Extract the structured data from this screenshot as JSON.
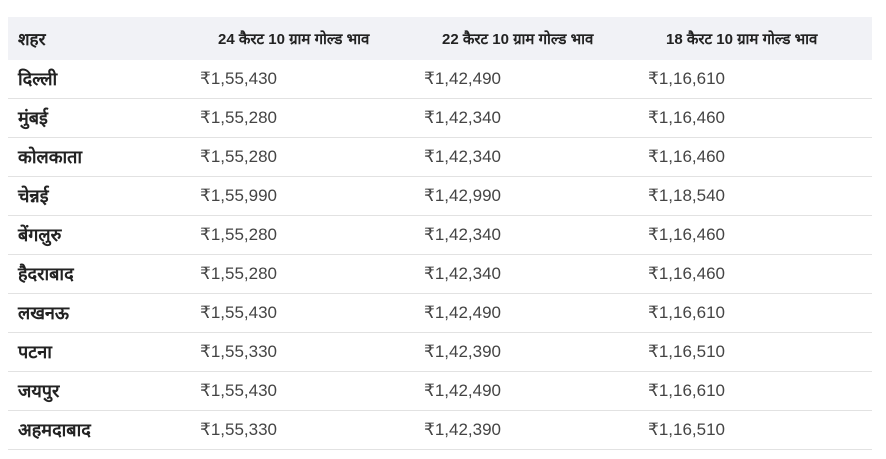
{
  "table": {
    "headers": [
      "शहर",
      "24 कैरट 10 ग्राम गोल्ड भाव",
      "22 कैरट 10 ग्राम गोल्ड भाव",
      "18 कैरट 10 ग्राम गोल्ड भाव"
    ],
    "rows": [
      [
        "दिल्ली",
        "₹1,55,430",
        "₹1,42,490",
        "₹1,16,610"
      ],
      [
        "मुंबई",
        "₹1,55,280",
        "₹1,42,340",
        "₹1,16,460"
      ],
      [
        "कोलकाता",
        "₹1,55,280",
        "₹1,42,340",
        "₹1,16,460"
      ],
      [
        "चेन्नई",
        "₹1,55,990",
        "₹1,42,990",
        "₹1,18,540"
      ],
      [
        "बेंगलुरु",
        "₹1,55,280",
        "₹1,42,340",
        "₹1,16,460"
      ],
      [
        "हैदराबाद",
        "₹1,55,280",
        "₹1,42,340",
        "₹1,16,460"
      ],
      [
        "लखनऊ",
        "₹1,55,430",
        "₹1,42,490",
        "₹1,16,610"
      ],
      [
        "पटना",
        "₹1,55,330",
        "₹1,42,390",
        "₹1,16,510"
      ],
      [
        "जयपुर",
        "₹1,55,430",
        "₹1,42,490",
        "₹1,16,610"
      ],
      [
        "अहमदाबाद",
        "₹1,55,330",
        "₹1,42,390",
        "₹1,16,510"
      ]
    ]
  }
}
